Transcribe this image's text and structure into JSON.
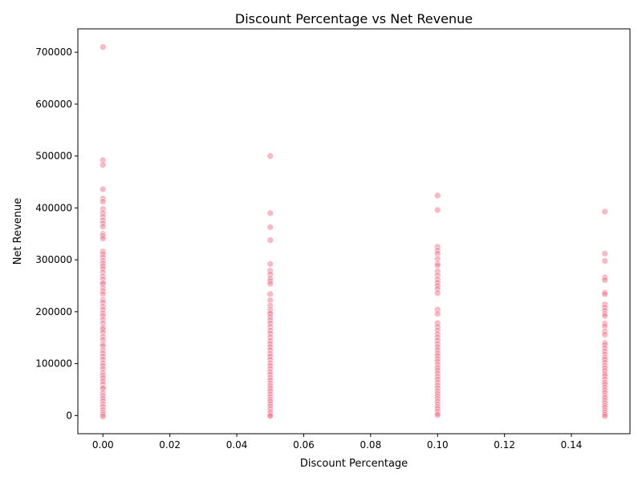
{
  "chart_data": {
    "type": "scatter",
    "title": "Discount Percentage vs Net Revenue",
    "xlabel": "Discount Percentage",
    "ylabel": "Net Revenue",
    "xlim": [
      -0.0075,
      0.1575
    ],
    "ylim": [
      -35000,
      745000
    ],
    "xticks": [
      0.0,
      0.02,
      0.04,
      0.06,
      0.08,
      0.1,
      0.12,
      0.14
    ],
    "xtick_labels": [
      "0.00",
      "0.02",
      "0.04",
      "0.06",
      "0.08",
      "0.10",
      "0.12",
      "0.14"
    ],
    "yticks": [
      0,
      100000,
      200000,
      300000,
      400000,
      500000,
      600000,
      700000
    ],
    "ytick_labels": [
      "0",
      "100000",
      "200000",
      "300000",
      "400000",
      "500000",
      "600000",
      "700000"
    ],
    "grid": false,
    "marker_color": "#f07890",
    "marker_alpha": 0.5,
    "points": [
      {
        "x": 0.0,
        "values": [
          710000,
          492000,
          483000,
          436000,
          418000,
          412000,
          398000,
          390000,
          383000,
          376000,
          370000,
          364000,
          350000,
          346000,
          341000,
          316000,
          311000,
          305000,
          298000,
          293000,
          288000,
          283000,
          276000,
          268000,
          262000,
          256000,
          254000,
          246000,
          240000,
          234000,
          223000,
          218000,
          210000,
          204000,
          197000,
          192000,
          185000,
          178000,
          170000,
          166000,
          160000,
          152000,
          146000,
          138000,
          134000,
          126000,
          120000,
          114000,
          108000,
          101000,
          96000,
          90000,
          82000,
          77000,
          72000,
          66000,
          60000,
          54000,
          52000,
          44000,
          38000,
          33000,
          28000,
          22000,
          17000,
          11000,
          6000,
          2000,
          -2000
        ]
      },
      {
        "x": 0.05,
        "values": [
          500000,
          390000,
          363000,
          338000,
          292000,
          279000,
          272000,
          264000,
          259000,
          254000,
          234000,
          222000,
          212000,
          204000,
          199000,
          196000,
          190000,
          184000,
          178000,
          171000,
          164000,
          158000,
          151000,
          144000,
          138000,
          132000,
          126000,
          119000,
          114000,
          108000,
          101000,
          96000,
          90000,
          84000,
          79000,
          73000,
          68000,
          62000,
          57000,
          52000,
          47000,
          41000,
          36000,
          31000,
          27000,
          22000,
          17000,
          12000,
          8000,
          5000,
          1000,
          -1000
        ]
      },
      {
        "x": 0.1,
        "values": [
          424000,
          396000,
          325000,
          318000,
          312000,
          302000,
          293000,
          289000,
          278000,
          270000,
          262000,
          256000,
          250000,
          244000,
          236000,
          204000,
          196000,
          178000,
          171000,
          164000,
          157000,
          151000,
          145000,
          138000,
          132000,
          126000,
          120000,
          115000,
          109000,
          104000,
          98000,
          92000,
          87000,
          81000,
          75000,
          70000,
          64000,
          58000,
          53000,
          47000,
          42000,
          37000,
          32000,
          27000,
          22000,
          17000,
          13000,
          8000,
          4000,
          1000
        ]
      },
      {
        "x": 0.15,
        "values": [
          393000,
          312000,
          298000,
          266000,
          261000,
          237000,
          234000,
          214000,
          208000,
          202000,
          196000,
          192000,
          177000,
          172000,
          162000,
          156000,
          140000,
          136000,
          130000,
          124000,
          118000,
          112000,
          108000,
          102000,
          96000,
          91000,
          86000,
          80000,
          76000,
          70000,
          64000,
          60000,
          54000,
          49000,
          44000,
          38000,
          34000,
          29000,
          24000,
          19000,
          15000,
          10000,
          6000,
          2000,
          -1000
        ]
      }
    ]
  }
}
